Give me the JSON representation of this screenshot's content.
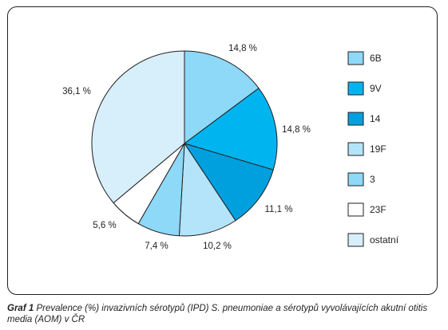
{
  "chart_data": {
    "type": "pie",
    "categories": [
      "6B",
      "9V",
      "14",
      "19F",
      "3",
      "23F",
      "ostatní"
    ],
    "values": [
      14.8,
      14.8,
      11.1,
      10.2,
      7.4,
      5.6,
      36.1
    ],
    "value_labels": [
      "14,8 %",
      "14,8 %",
      "11,1 %",
      "10,2 %",
      "7,4 %",
      "5,6 %",
      "36,1 %"
    ],
    "colors": [
      "#8ed8f8",
      "#00b5ef",
      "#00a0df",
      "#b3e4fa",
      "#8ed8f8",
      "#ffffff",
      "#d6effb"
    ],
    "legend_position": "right",
    "start_angle": "top",
    "direction": "clockwise"
  },
  "caption": {
    "label": "Graf 1",
    "text": "Prevalence (%) invazivních sérotypů (IPD) S. pneumoniae a sérotypů vyvolávajících akutní otitis media (AOM) v ČR"
  }
}
